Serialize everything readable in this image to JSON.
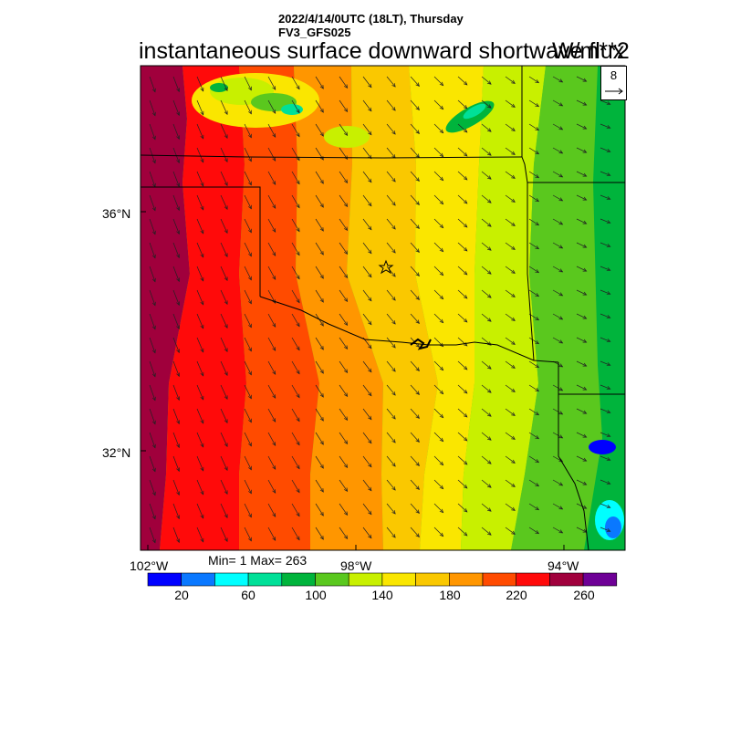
{
  "header": {
    "line1": "2022/4/14/0UTC (18LT), Thursday",
    "line2": "FV3_GFS025",
    "title": "instantaneous surface downward shortwave flux",
    "units": "W/m**2"
  },
  "stats": {
    "text": "Min= 1 Max= 263"
  },
  "reference_vector": {
    "label": "8"
  },
  "axes": {
    "lat_labels": [
      "36°N",
      "32°N"
    ],
    "lon_labels": [
      "102°W",
      "98°W",
      "94°W"
    ]
  },
  "colorbar": {
    "tick_labels": [
      "20",
      "60",
      "100",
      "140",
      "180",
      "220",
      "260"
    ],
    "colors": [
      "#0000ff",
      "#0a78ff",
      "#00ffff",
      "#00e098",
      "#00b43c",
      "#5ac81e",
      "#c8f000",
      "#fae600",
      "#fac800",
      "#ff9600",
      "#ff4b00",
      "#ff0a0a",
      "#a0003c",
      "#6e0096"
    ]
  },
  "map": {
    "field": "surface downward shortwave flux",
    "marker": "star",
    "vector_field": "wind arrows"
  }
}
